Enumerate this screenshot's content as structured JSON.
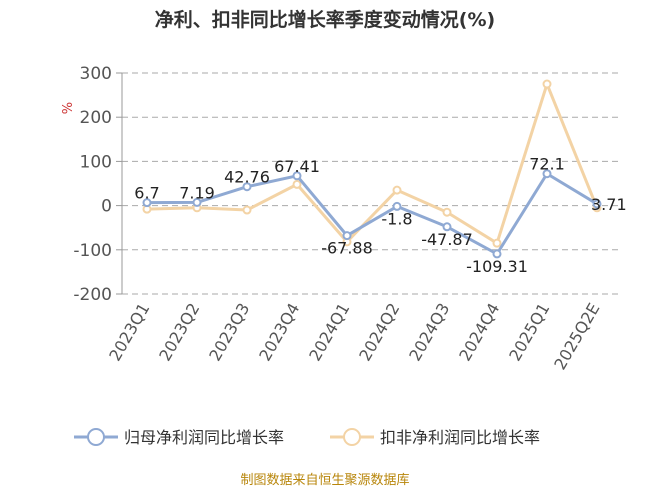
{
  "chart_data": {
    "type": "line",
    "title": "净利、扣非同比增长率季度变动情况(%)",
    "y_unit": "%",
    "categories": [
      "2023Q1",
      "2023Q2",
      "2023Q3",
      "2023Q4",
      "2024Q1",
      "2024Q2",
      "2024Q3",
      "2024Q4",
      "2025Q1",
      "2025Q2E"
    ],
    "ylim": [
      -200,
      300
    ],
    "yticks": [
      300,
      200,
      100,
      0,
      -100,
      -200
    ],
    "grid": true,
    "legend_position": "bottom",
    "series": [
      {
        "name": "归母净利润同比增长率",
        "color": "#8fa9d3",
        "values": [
          6.7,
          7.19,
          42.76,
          67.41,
          -67.88,
          -1.8,
          -47.87,
          -109.31,
          72.1,
          3.71
        ],
        "labels": [
          "6.7",
          "7.19",
          "42.76",
          "67.41",
          "-67.88",
          "-1.8",
          "-47.87",
          "-109.31",
          "72.1",
          "3.71"
        ]
      },
      {
        "name": "扣非净利润同比增长率",
        "color": "#f3d3a5",
        "values": [
          -8,
          -5,
          -10,
          48,
          -82,
          35,
          -15,
          -85,
          275,
          -5
        ]
      }
    ]
  },
  "source_text": "制图数据来自恒生聚源数据库"
}
